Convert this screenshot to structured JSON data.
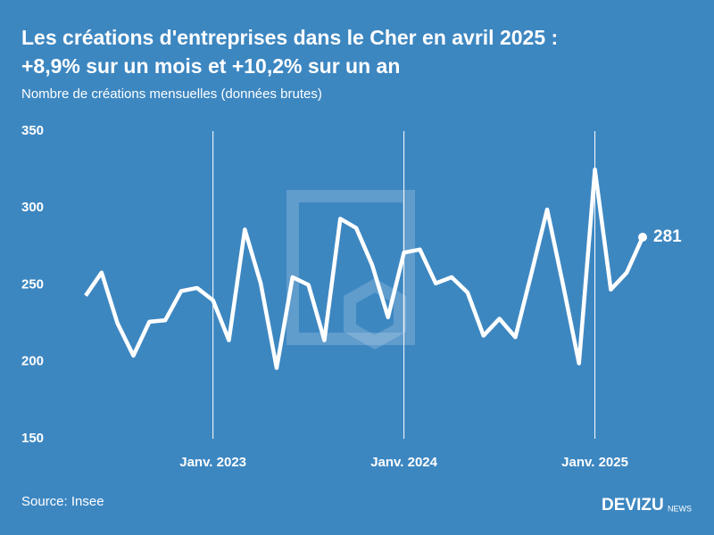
{
  "chart_data": {
    "type": "line",
    "title": "Les créations d'entreprises dans le Cher en avril 2025 : +8,9% sur un mois et +10,2% sur un an",
    "subtitle": "Nombre de créations mensuelles (données brutes)",
    "categories": [
      null,
      null,
      null,
      null,
      null,
      null,
      null,
      null,
      "Janv. 2023",
      null,
      null,
      null,
      null,
      null,
      null,
      null,
      null,
      null,
      null,
      null,
      "Janv. 2024",
      null,
      null,
      null,
      null,
      null,
      null,
      null,
      null,
      null,
      null,
      null,
      "Janv. 2025",
      null,
      null,
      null
    ],
    "values": [
      243,
      258,
      225,
      204,
      226,
      227,
      246,
      248,
      240,
      214,
      286,
      251,
      196,
      255,
      250,
      214,
      293,
      287,
      263,
      229,
      271,
      273,
      251,
      255,
      245,
      217,
      228,
      216,
      257,
      299,
      250,
      199,
      325,
      247,
      258,
      281
    ],
    "color": "#ffffff",
    "ylim": [
      150,
      350
    ],
    "yticks": [
      150,
      200,
      250,
      300,
      350
    ],
    "source": "Source: Insee",
    "brand": "DEVIZU",
    "brand_suffix": "NEWS"
  }
}
